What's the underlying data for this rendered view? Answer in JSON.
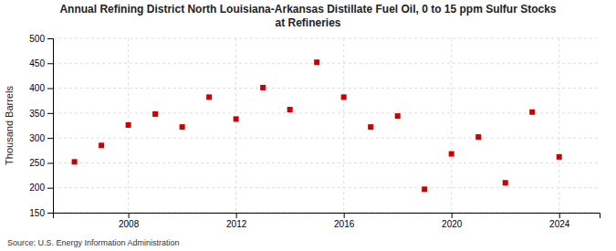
{
  "chart_data": {
    "type": "scatter",
    "title": "Annual Refining District North Louisiana-Arkansas Distillate Fuel Oil, 0 to 15 ppm Sulfur Stocks\nat  Refineries",
    "ylabel": "Thousand Barrels",
    "source": "Source: U.S. Energy Information Administration",
    "x": [
      2006,
      2007,
      2008,
      2009,
      2010,
      2011,
      2012,
      2013,
      2014,
      2015,
      2016,
      2017,
      2018,
      2019,
      2020,
      2021,
      2022,
      2023,
      2024
    ],
    "values": [
      252,
      285,
      326,
      348,
      322,
      382,
      338,
      401,
      357,
      452,
      382,
      322,
      344,
      197,
      268,
      302,
      210,
      352,
      262
    ],
    "color": "#cc0000",
    "marker": "square",
    "xlim": [
      2005.2,
      2025.5
    ],
    "xticks": [
      2008,
      2012,
      2016,
      2020,
      2024
    ],
    "ylim": [
      150,
      500
    ],
    "yticks": [
      150,
      200,
      250,
      300,
      350,
      400,
      450,
      500
    ],
    "grid": true
  }
}
